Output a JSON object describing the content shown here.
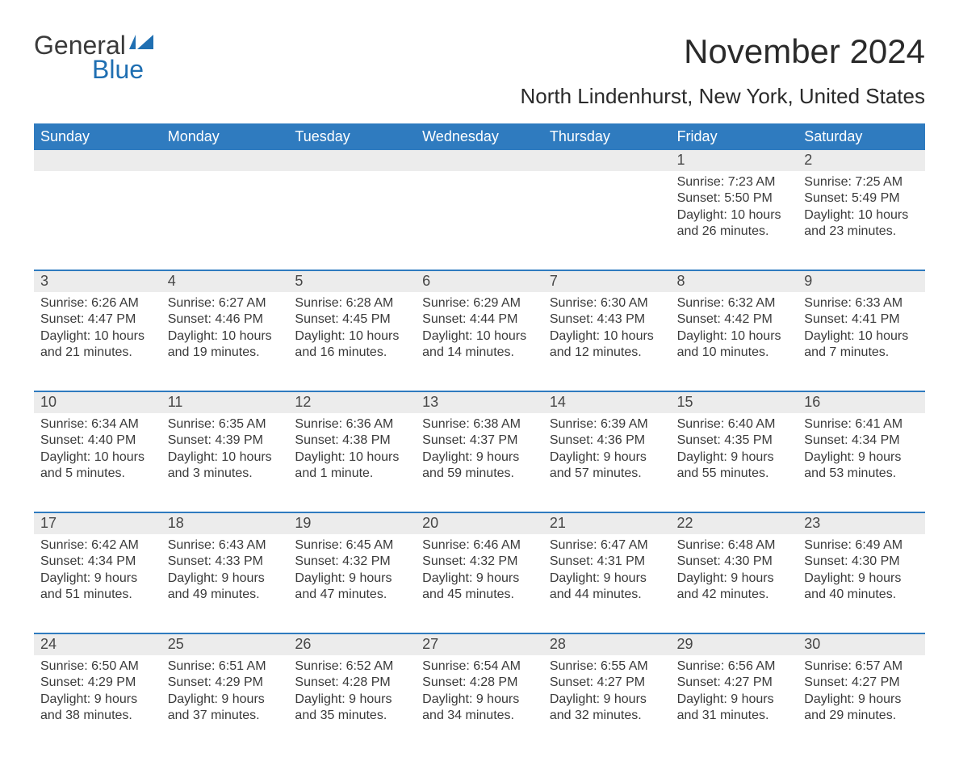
{
  "brand": {
    "word1": "General",
    "word2": "Blue",
    "word1_color": "#3a3a3a",
    "word2_color": "#1f6fb2",
    "flag_color": "#1f6fb2"
  },
  "title": "November 2024",
  "location": "North Lindenhurst, New York, United States",
  "colors": {
    "header_bg": "#2f7bbf",
    "header_fg": "#ffffff",
    "daynum_bg": "#ececec",
    "week_border": "#2f7bbf",
    "text": "#3a3a3a",
    "background": "#ffffff"
  },
  "fontsizes": {
    "title_pt": 42,
    "location_pt": 26,
    "dow_pt": 18,
    "daynum_pt": 18,
    "body_pt": 16,
    "logo_pt": 32
  },
  "day_headers": [
    "Sunday",
    "Monday",
    "Tuesday",
    "Wednesday",
    "Thursday",
    "Friday",
    "Saturday"
  ],
  "weeks": [
    [
      null,
      null,
      null,
      null,
      null,
      {
        "n": "1",
        "sunrise": "Sunrise: 7:23 AM",
        "sunset": "Sunset: 5:50 PM",
        "day1": "Daylight: 10 hours",
        "day2": "and 26 minutes."
      },
      {
        "n": "2",
        "sunrise": "Sunrise: 7:25 AM",
        "sunset": "Sunset: 5:49 PM",
        "day1": "Daylight: 10 hours",
        "day2": "and 23 minutes."
      }
    ],
    [
      {
        "n": "3",
        "sunrise": "Sunrise: 6:26 AM",
        "sunset": "Sunset: 4:47 PM",
        "day1": "Daylight: 10 hours",
        "day2": "and 21 minutes."
      },
      {
        "n": "4",
        "sunrise": "Sunrise: 6:27 AM",
        "sunset": "Sunset: 4:46 PM",
        "day1": "Daylight: 10 hours",
        "day2": "and 19 minutes."
      },
      {
        "n": "5",
        "sunrise": "Sunrise: 6:28 AM",
        "sunset": "Sunset: 4:45 PM",
        "day1": "Daylight: 10 hours",
        "day2": "and 16 minutes."
      },
      {
        "n": "6",
        "sunrise": "Sunrise: 6:29 AM",
        "sunset": "Sunset: 4:44 PM",
        "day1": "Daylight: 10 hours",
        "day2": "and 14 minutes."
      },
      {
        "n": "7",
        "sunrise": "Sunrise: 6:30 AM",
        "sunset": "Sunset: 4:43 PM",
        "day1": "Daylight: 10 hours",
        "day2": "and 12 minutes."
      },
      {
        "n": "8",
        "sunrise": "Sunrise: 6:32 AM",
        "sunset": "Sunset: 4:42 PM",
        "day1": "Daylight: 10 hours",
        "day2": "and 10 minutes."
      },
      {
        "n": "9",
        "sunrise": "Sunrise: 6:33 AM",
        "sunset": "Sunset: 4:41 PM",
        "day1": "Daylight: 10 hours",
        "day2": "and 7 minutes."
      }
    ],
    [
      {
        "n": "10",
        "sunrise": "Sunrise: 6:34 AM",
        "sunset": "Sunset: 4:40 PM",
        "day1": "Daylight: 10 hours",
        "day2": "and 5 minutes."
      },
      {
        "n": "11",
        "sunrise": "Sunrise: 6:35 AM",
        "sunset": "Sunset: 4:39 PM",
        "day1": "Daylight: 10 hours",
        "day2": "and 3 minutes."
      },
      {
        "n": "12",
        "sunrise": "Sunrise: 6:36 AM",
        "sunset": "Sunset: 4:38 PM",
        "day1": "Daylight: 10 hours",
        "day2": "and 1 minute."
      },
      {
        "n": "13",
        "sunrise": "Sunrise: 6:38 AM",
        "sunset": "Sunset: 4:37 PM",
        "day1": "Daylight: 9 hours",
        "day2": "and 59 minutes."
      },
      {
        "n": "14",
        "sunrise": "Sunrise: 6:39 AM",
        "sunset": "Sunset: 4:36 PM",
        "day1": "Daylight: 9 hours",
        "day2": "and 57 minutes."
      },
      {
        "n": "15",
        "sunrise": "Sunrise: 6:40 AM",
        "sunset": "Sunset: 4:35 PM",
        "day1": "Daylight: 9 hours",
        "day2": "and 55 minutes."
      },
      {
        "n": "16",
        "sunrise": "Sunrise: 6:41 AM",
        "sunset": "Sunset: 4:34 PM",
        "day1": "Daylight: 9 hours",
        "day2": "and 53 minutes."
      }
    ],
    [
      {
        "n": "17",
        "sunrise": "Sunrise: 6:42 AM",
        "sunset": "Sunset: 4:34 PM",
        "day1": "Daylight: 9 hours",
        "day2": "and 51 minutes."
      },
      {
        "n": "18",
        "sunrise": "Sunrise: 6:43 AM",
        "sunset": "Sunset: 4:33 PM",
        "day1": "Daylight: 9 hours",
        "day2": "and 49 minutes."
      },
      {
        "n": "19",
        "sunrise": "Sunrise: 6:45 AM",
        "sunset": "Sunset: 4:32 PM",
        "day1": "Daylight: 9 hours",
        "day2": "and 47 minutes."
      },
      {
        "n": "20",
        "sunrise": "Sunrise: 6:46 AM",
        "sunset": "Sunset: 4:32 PM",
        "day1": "Daylight: 9 hours",
        "day2": "and 45 minutes."
      },
      {
        "n": "21",
        "sunrise": "Sunrise: 6:47 AM",
        "sunset": "Sunset: 4:31 PM",
        "day1": "Daylight: 9 hours",
        "day2": "and 44 minutes."
      },
      {
        "n": "22",
        "sunrise": "Sunrise: 6:48 AM",
        "sunset": "Sunset: 4:30 PM",
        "day1": "Daylight: 9 hours",
        "day2": "and 42 minutes."
      },
      {
        "n": "23",
        "sunrise": "Sunrise: 6:49 AM",
        "sunset": "Sunset: 4:30 PM",
        "day1": "Daylight: 9 hours",
        "day2": "and 40 minutes."
      }
    ],
    [
      {
        "n": "24",
        "sunrise": "Sunrise: 6:50 AM",
        "sunset": "Sunset: 4:29 PM",
        "day1": "Daylight: 9 hours",
        "day2": "and 38 minutes."
      },
      {
        "n": "25",
        "sunrise": "Sunrise: 6:51 AM",
        "sunset": "Sunset: 4:29 PM",
        "day1": "Daylight: 9 hours",
        "day2": "and 37 minutes."
      },
      {
        "n": "26",
        "sunrise": "Sunrise: 6:52 AM",
        "sunset": "Sunset: 4:28 PM",
        "day1": "Daylight: 9 hours",
        "day2": "and 35 minutes."
      },
      {
        "n": "27",
        "sunrise": "Sunrise: 6:54 AM",
        "sunset": "Sunset: 4:28 PM",
        "day1": "Daylight: 9 hours",
        "day2": "and 34 minutes."
      },
      {
        "n": "28",
        "sunrise": "Sunrise: 6:55 AM",
        "sunset": "Sunset: 4:27 PM",
        "day1": "Daylight: 9 hours",
        "day2": "and 32 minutes."
      },
      {
        "n": "29",
        "sunrise": "Sunrise: 6:56 AM",
        "sunset": "Sunset: 4:27 PM",
        "day1": "Daylight: 9 hours",
        "day2": "and 31 minutes."
      },
      {
        "n": "30",
        "sunrise": "Sunrise: 6:57 AM",
        "sunset": "Sunset: 4:27 PM",
        "day1": "Daylight: 9 hours",
        "day2": "and 29 minutes."
      }
    ]
  ]
}
